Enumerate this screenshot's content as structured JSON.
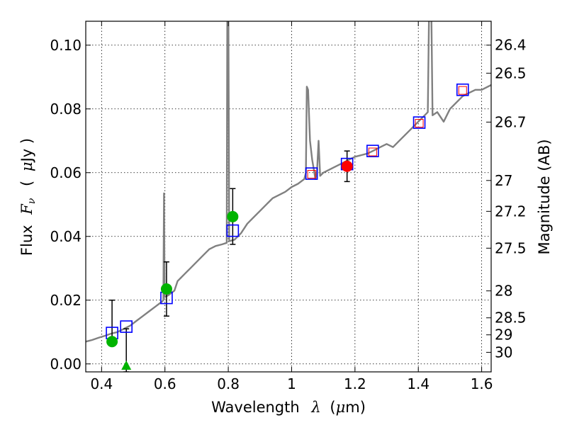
{
  "chart_data": {
    "type": "scatter",
    "title": "",
    "xlabel": {
      "prefix": "Wavelength",
      "symbol": "λ",
      "unit_open": "(",
      "mu": "μ",
      "unit_rest": "m)"
    },
    "ylabel": {
      "prefix": "Flux",
      "symbol": "F",
      "sub": "ν",
      "paren_open": "(",
      "mu": "μ",
      "unit_rest": "Jy )"
    },
    "y2label": "Magnitude (AB)",
    "xlim": [
      0.35,
      1.63
    ],
    "ylim": [
      -0.0025,
      0.1075
    ],
    "grid": true,
    "x_ticks": [
      {
        "value": 0.4,
        "label": "0.4"
      },
      {
        "value": 0.6,
        "label": "0.6"
      },
      {
        "value": 0.8,
        "label": "0.8"
      },
      {
        "value": 1.0,
        "label": "1"
      },
      {
        "value": 1.2,
        "label": "1.2"
      },
      {
        "value": 1.4,
        "label": "1.4"
      },
      {
        "value": 1.6,
        "label": "1.6"
      }
    ],
    "y_ticks": [
      {
        "value": 0.0,
        "label": "0.00"
      },
      {
        "value": 0.02,
        "label": "0.02"
      },
      {
        "value": 0.04,
        "label": "0.04"
      },
      {
        "value": 0.06,
        "label": "0.06"
      },
      {
        "value": 0.08,
        "label": "0.08"
      },
      {
        "value": 0.1,
        "label": "0.10"
      }
    ],
    "mag_ticks": [
      {
        "value": 26.4,
        "label": "26.4"
      },
      {
        "value": 26.5,
        "label": "26.5"
      },
      {
        "value": 26.7,
        "label": "26.7"
      },
      {
        "value": 27.0,
        "label": "27"
      },
      {
        "value": 27.2,
        "label": "27.2"
      },
      {
        "value": 27.5,
        "label": "27.5"
      },
      {
        "value": 28.0,
        "label": "28"
      },
      {
        "value": 28.5,
        "label": "28.5"
      },
      {
        "value": 29.0,
        "label": "29"
      },
      {
        "value": 30.0,
        "label": "30"
      }
    ],
    "colors": {
      "model": "#808080",
      "model_box": "#0000ff",
      "green": "#00b400",
      "red": "#ff0000",
      "red_box": "#ff0000",
      "errorbar": "#000000"
    },
    "model_spectrum": {
      "name": "model SED",
      "points": [
        [
          0.35,
          0.007
        ],
        [
          0.37,
          0.0075
        ],
        [
          0.39,
          0.0082
        ],
        [
          0.41,
          0.0088
        ],
        [
          0.43,
          0.0095
        ],
        [
          0.45,
          0.01
        ],
        [
          0.47,
          0.011
        ],
        [
          0.49,
          0.012
        ],
        [
          0.51,
          0.0135
        ],
        [
          0.53,
          0.015
        ],
        [
          0.55,
          0.0165
        ],
        [
          0.57,
          0.018
        ],
        [
          0.59,
          0.0195
        ],
        [
          0.595,
          0.02
        ],
        [
          0.597,
          0.0535
        ],
        [
          0.599,
          0.021
        ],
        [
          0.61,
          0.0215
        ],
        [
          0.63,
          0.023
        ],
        [
          0.64,
          0.026
        ],
        [
          0.66,
          0.028
        ],
        [
          0.68,
          0.03
        ],
        [
          0.7,
          0.032
        ],
        [
          0.72,
          0.034
        ],
        [
          0.74,
          0.036
        ],
        [
          0.76,
          0.037
        ],
        [
          0.78,
          0.0375
        ],
        [
          0.795,
          0.038
        ],
        [
          0.797,
          0.12
        ],
        [
          0.8,
          0.12
        ],
        [
          0.803,
          0.0385
        ],
        [
          0.82,
          0.039
        ],
        [
          0.84,
          0.041
        ],
        [
          0.86,
          0.044
        ],
        [
          0.88,
          0.046
        ],
        [
          0.9,
          0.048
        ],
        [
          0.92,
          0.05
        ],
        [
          0.94,
          0.052
        ],
        [
          0.96,
          0.053
        ],
        [
          0.98,
          0.054
        ],
        [
          1.0,
          0.0555
        ],
        [
          1.02,
          0.0565
        ],
        [
          1.04,
          0.058
        ],
        [
          1.045,
          0.06
        ],
        [
          1.048,
          0.087
        ],
        [
          1.052,
          0.086
        ],
        [
          1.058,
          0.07
        ],
        [
          1.065,
          0.064
        ],
        [
          1.07,
          0.061
        ],
        [
          1.075,
          0.058
        ],
        [
          1.08,
          0.06
        ],
        [
          1.085,
          0.07
        ],
        [
          1.09,
          0.059
        ],
        [
          1.1,
          0.06
        ],
        [
          1.12,
          0.061
        ],
        [
          1.14,
          0.062
        ],
        [
          1.16,
          0.063
        ],
        [
          1.18,
          0.064
        ],
        [
          1.2,
          0.065
        ],
        [
          1.22,
          0.0655
        ],
        [
          1.24,
          0.066
        ],
        [
          1.26,
          0.067
        ],
        [
          1.28,
          0.068
        ],
        [
          1.3,
          0.069
        ],
        [
          1.32,
          0.068
        ],
        [
          1.34,
          0.07
        ],
        [
          1.36,
          0.072
        ],
        [
          1.38,
          0.074
        ],
        [
          1.4,
          0.076
        ],
        [
          1.42,
          0.078
        ],
        [
          1.43,
          0.079
        ],
        [
          1.435,
          0.12
        ],
        [
          1.44,
          0.12
        ],
        [
          1.445,
          0.078
        ],
        [
          1.46,
          0.079
        ],
        [
          1.48,
          0.076
        ],
        [
          1.5,
          0.08
        ],
        [
          1.52,
          0.082
        ],
        [
          1.54,
          0.084
        ],
        [
          1.56,
          0.085
        ],
        [
          1.58,
          0.086
        ],
        [
          1.6,
          0.086
        ],
        [
          1.63,
          0.0875
        ]
      ]
    },
    "model_photometry": {
      "name": "model photometry (blue squares)",
      "points": [
        [
          0.433,
          0.0097
        ],
        [
          0.478,
          0.0117
        ],
        [
          0.605,
          0.0207
        ],
        [
          0.814,
          0.0418
        ],
        [
          1.063,
          0.0597
        ],
        [
          1.175,
          0.0627
        ],
        [
          1.256,
          0.0668
        ],
        [
          1.403,
          0.0757
        ],
        [
          1.54,
          0.086
        ]
      ]
    },
    "observed_detections": {
      "name": "observed flux (green circles)",
      "points": [
        {
          "x": 0.433,
          "y": 0.007,
          "yerr_low": 0.007,
          "yerr_high": 0.02
        },
        {
          "x": 0.605,
          "y": 0.0235,
          "yerr_low": 0.015,
          "yerr_high": 0.032
        },
        {
          "x": 0.814,
          "y": 0.0462,
          "yerr_low": 0.0375,
          "yerr_high": 0.055
        }
      ]
    },
    "observed_upper": {
      "name": "observed flux (green triangle)",
      "points": [
        {
          "x": 0.478,
          "y": -0.0005,
          "yerr_low": -0.0025,
          "yerr_high": 0.011
        }
      ]
    },
    "observed_red": {
      "name": "observed flux (red circle)",
      "points": [
        {
          "x": 1.175,
          "y": 0.062,
          "yerr_low": 0.0572,
          "yerr_high": 0.0668
        }
      ]
    },
    "observed_red_boxes": {
      "name": "observed flux (small red squares)",
      "points": [
        [
          1.063,
          0.0595
        ],
        [
          1.256,
          0.0665
        ],
        [
          1.403,
          0.0755
        ],
        [
          1.54,
          0.0858
        ]
      ]
    }
  }
}
